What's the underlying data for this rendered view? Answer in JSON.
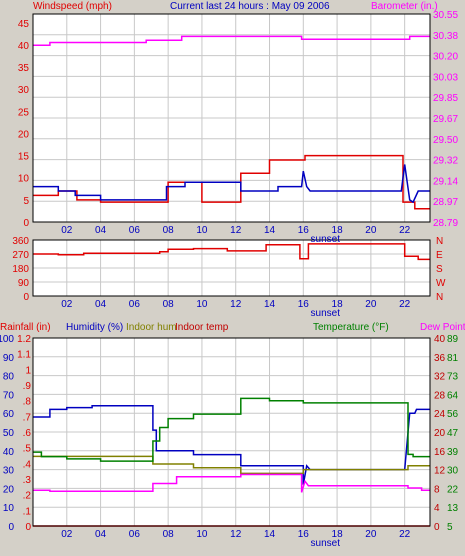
{
  "header": {
    "left_label": "Windspeed (mph)",
    "center_label": "Current last 24 hours : May 09 2006",
    "right_label": "Barometer (in.)"
  },
  "colors": {
    "wind": "#e00000",
    "gust": "#0000c0",
    "barometer": "#ff00ff",
    "direction": "#e00000",
    "rain": "#e00000",
    "humidity": "#0000c0",
    "indoor_hum": "#808000",
    "indoor_temp": "#c00000",
    "temperature": "#008000",
    "dew_point": "#ff00ff",
    "axis_left": "#0000c0",
    "background": "#d4d0c8"
  },
  "chart_data": [
    {
      "type": "line",
      "name": "wind-barometer",
      "x_ticks": [
        "02",
        "04",
        "06",
        "08",
        "10",
        "12",
        "14",
        "16",
        "18",
        "20",
        "22"
      ],
      "x_note": "sunset",
      "xlim": [
        0,
        23.5
      ],
      "left_axis": {
        "label": "Windspeed (mph)",
        "ticks": [
          "0",
          "5",
          "10",
          "15",
          "20",
          "25",
          "30",
          "35",
          "40",
          "45"
        ],
        "ylim": [
          0,
          47
        ]
      },
      "right_axis": {
        "label": "Barometer (in.)",
        "ticks": [
          "28.79",
          "28.97",
          "29.14",
          "29.32",
          "29.50",
          "29.67",
          "29.85",
          "30.03",
          "30.20",
          "30.38",
          "30.55"
        ],
        "ylim": [
          28.74,
          30.6
        ]
      },
      "series": [
        {
          "key": "wind",
          "axis": "left",
          "x": [
            0,
            1.5,
            1.5,
            2.6,
            2.6,
            4.0,
            4.0,
            8.0,
            8.0,
            10.0,
            10.0,
            12.3,
            12.3,
            14.0,
            14.0,
            16.1,
            16.1,
            21.9,
            21.9,
            22.6,
            22.6,
            23.5
          ],
          "y": [
            6,
            6,
            7,
            7,
            5,
            5,
            4.5,
            4.5,
            9,
            9,
            4.5,
            4.5,
            11,
            11,
            14,
            14,
            15,
            15,
            4.5,
            4.5,
            3,
            3
          ]
        },
        {
          "key": "gust",
          "axis": "left",
          "x": [
            0,
            1.5,
            1.5,
            2.5,
            2.5,
            4.0,
            4.0,
            7.9,
            7.9,
            9.0,
            9.0,
            12.3,
            12.3,
            14.5,
            14.5,
            15.9,
            16.0,
            16.2,
            16.4,
            21.8,
            22.0,
            22.3,
            22.5,
            22.8,
            23.0,
            23.5
          ],
          "y": [
            8,
            8,
            7,
            7,
            6,
            6,
            5,
            5,
            8,
            8,
            9,
            9,
            7,
            7,
            8,
            8,
            11.5,
            8,
            7,
            7,
            13,
            5,
            4.5,
            7,
            7,
            7
          ]
        },
        {
          "key": "barometer",
          "axis": "right",
          "x": [
            0,
            1.0,
            1.0,
            6.7,
            6.7,
            8.8,
            8.8,
            15.9,
            15.9,
            22.3,
            22.3,
            23.5
          ],
          "y": [
            30.32,
            30.32,
            30.345,
            30.345,
            30.365,
            30.365,
            30.4,
            30.4,
            30.375,
            30.375,
            30.4,
            30.4
          ]
        }
      ]
    },
    {
      "type": "line",
      "name": "wind-direction",
      "x_ticks": [
        "02",
        "04",
        "06",
        "08",
        "10",
        "12",
        "14",
        "16",
        "18",
        "20",
        "22"
      ],
      "x_note": "sunset",
      "xlim": [
        0,
        23.5
      ],
      "left_axis": {
        "label": "",
        "ticks": [
          "0",
          "90",
          "180",
          "270",
          "360"
        ],
        "ylim": [
          0,
          360
        ]
      },
      "right_axis": {
        "label": "",
        "ticks": [
          "N",
          "W",
          "S",
          "E",
          "N"
        ]
      },
      "series": [
        {
          "key": "direction",
          "axis": "left",
          "x": [
            0,
            1.5,
            1.5,
            3.0,
            3.0,
            7.5,
            7.5,
            8.0,
            8.0,
            9.5,
            9.5,
            11.5,
            11.5,
            13.8,
            13.8,
            15.8,
            15.8,
            16.3,
            16.3,
            22.0,
            22.0,
            22.8,
            22.8,
            23.5
          ],
          "y": [
            270,
            270,
            265,
            265,
            275,
            275,
            285,
            285,
            300,
            300,
            305,
            305,
            290,
            290,
            330,
            330,
            240,
            240,
            335,
            335,
            255,
            255,
            235,
            235
          ]
        }
      ]
    },
    {
      "type": "line",
      "name": "temperature-humidity-rain",
      "x_ticks": [
        "02",
        "04",
        "06",
        "08",
        "10",
        "12",
        "14",
        "16",
        "18",
        "20",
        "22"
      ],
      "x_note": "sunset",
      "xlim": [
        0,
        23.5
      ],
      "header": {
        "rainfall": "Rainfall (in)",
        "humidity": "Humidity (%)",
        "indoor_hum": "Indoor hum",
        "indoor_temp": "Indoor temp",
        "temperature": "Temperature (°F)",
        "dew_point": "Dew Point"
      },
      "humidity_axis": {
        "ticks": [
          "0",
          "10",
          "20",
          "30",
          "40",
          "50",
          "60",
          "70",
          "80",
          "90",
          "100"
        ],
        "ylim": [
          0,
          100
        ]
      },
      "rain_axis": {
        "ticks": [
          "0",
          ".1",
          ".2",
          ".3",
          ".4",
          ".5",
          ".6",
          ".7",
          ".8",
          ".9",
          "1",
          "1.1",
          "1.2"
        ]
      },
      "temp_c_axis": {
        "ticks": [
          "0",
          "4",
          "8",
          "12",
          "16",
          "20",
          "24",
          "28",
          "32",
          "36",
          "40"
        ]
      },
      "temp_f_axis": {
        "ticks": [
          "5",
          "13",
          "22",
          "30",
          "39",
          "47",
          "56",
          "64",
          "73",
          "81",
          "89"
        ],
        "ylim": [
          5,
          89
        ]
      },
      "series": [
        {
          "key": "humidity",
          "axis": "humidity",
          "x": [
            0,
            1.0,
            1.0,
            2.0,
            2.0,
            3.5,
            3.5,
            7.1,
            7.1,
            7.3,
            7.3,
            9.5,
            9.5,
            12.3,
            12.3,
            16.0,
            16.0,
            16.2,
            16.4,
            22.0,
            22.3,
            22.6,
            22.7,
            23.5
          ],
          "y": [
            58,
            58,
            62,
            62,
            63,
            63,
            64,
            64,
            51,
            51,
            40,
            40,
            38,
            38,
            32,
            32,
            22,
            32,
            30,
            30,
            60,
            60,
            62,
            62
          ]
        },
        {
          "key": "indoor_hum",
          "axis": "humidity",
          "x": [
            0,
            7.1,
            7.1,
            9.5,
            9.5,
            12.3,
            12.3,
            16.0,
            16.0,
            22.2,
            22.2,
            23.5
          ],
          "y": [
            37,
            37,
            33,
            33,
            31,
            31,
            28,
            28,
            30,
            30,
            32,
            32
          ]
        },
        {
          "key": "rain",
          "axis": "humidity",
          "x": [
            0,
            23.5
          ],
          "y": [
            0,
            0
          ]
        },
        {
          "key": "temperature",
          "axis": "temp_f",
          "x": [
            0,
            0.5,
            0.5,
            2.0,
            2.0,
            4.0,
            4.0,
            7.1,
            7.1,
            7.5,
            7.5,
            8.0,
            8.0,
            9.5,
            9.5,
            12.3,
            12.3,
            14.0,
            14.0,
            16.0,
            16.0,
            22.2,
            22.2,
            22.5,
            22.5,
            23.5
          ],
          "y": [
            38,
            38,
            36,
            36,
            35,
            35,
            34,
            34,
            43,
            43,
            49,
            49,
            53,
            53,
            55,
            55,
            62,
            62,
            61,
            61,
            60,
            60,
            37,
            37,
            36,
            36
          ]
        },
        {
          "key": "dew_point",
          "axis": "temp_f",
          "x": [
            0,
            1.0,
            1.0,
            7.1,
            7.1,
            8.5,
            8.5,
            12.3,
            12.3,
            15.9,
            15.9,
            16.1,
            16.3,
            22.2,
            22.2,
            23.0,
            23.0,
            23.5
          ],
          "y": [
            21,
            21,
            20.5,
            20.5,
            24,
            24,
            27,
            27,
            28,
            28,
            20,
            25,
            23,
            23,
            22,
            22,
            21,
            21
          ]
        }
      ]
    }
  ]
}
